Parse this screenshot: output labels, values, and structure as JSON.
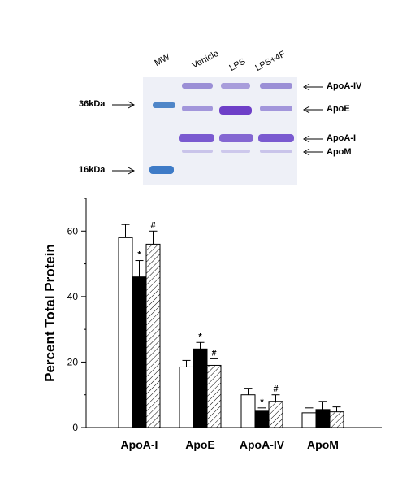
{
  "gel": {
    "lanes": [
      "MW",
      "Vehicle",
      "LPS",
      "LPS+4F"
    ],
    "mw_markers": [
      "36kDa",
      "16kDa"
    ],
    "bands": [
      "ApoA-IV",
      "ApoE",
      "ApoA-I",
      "ApoM"
    ]
  },
  "chart_data": {
    "type": "bar",
    "ylabel": "Percent Total Protein",
    "xlabel": "",
    "ylim": [
      0,
      70
    ],
    "yticks": [
      0,
      20,
      40,
      60
    ],
    "categories": [
      "ApoA-I",
      "ApoE",
      "ApoA-IV",
      "ApoM"
    ],
    "series": [
      {
        "fill": "white",
        "values": [
          58,
          18.5,
          10,
          4.5
        ],
        "errors": [
          4,
          2,
          2,
          1.5
        ]
      },
      {
        "fill": "black",
        "values": [
          46,
          24,
          5,
          5.5
        ],
        "errors": [
          5,
          2,
          1,
          2.5
        ]
      },
      {
        "fill": "hatched",
        "values": [
          56,
          19,
          8,
          4.8
        ],
        "errors": [
          4,
          2,
          2,
          1.5
        ]
      }
    ],
    "annotations": [
      {
        "category": 0,
        "series": 1,
        "text": "*"
      },
      {
        "category": 0,
        "series": 2,
        "text": "#"
      },
      {
        "category": 1,
        "series": 1,
        "text": "*"
      },
      {
        "category": 1,
        "series": 2,
        "text": "#"
      },
      {
        "category": 2,
        "series": 1,
        "text": "*"
      },
      {
        "category": 2,
        "series": 2,
        "text": "#"
      }
    ]
  }
}
